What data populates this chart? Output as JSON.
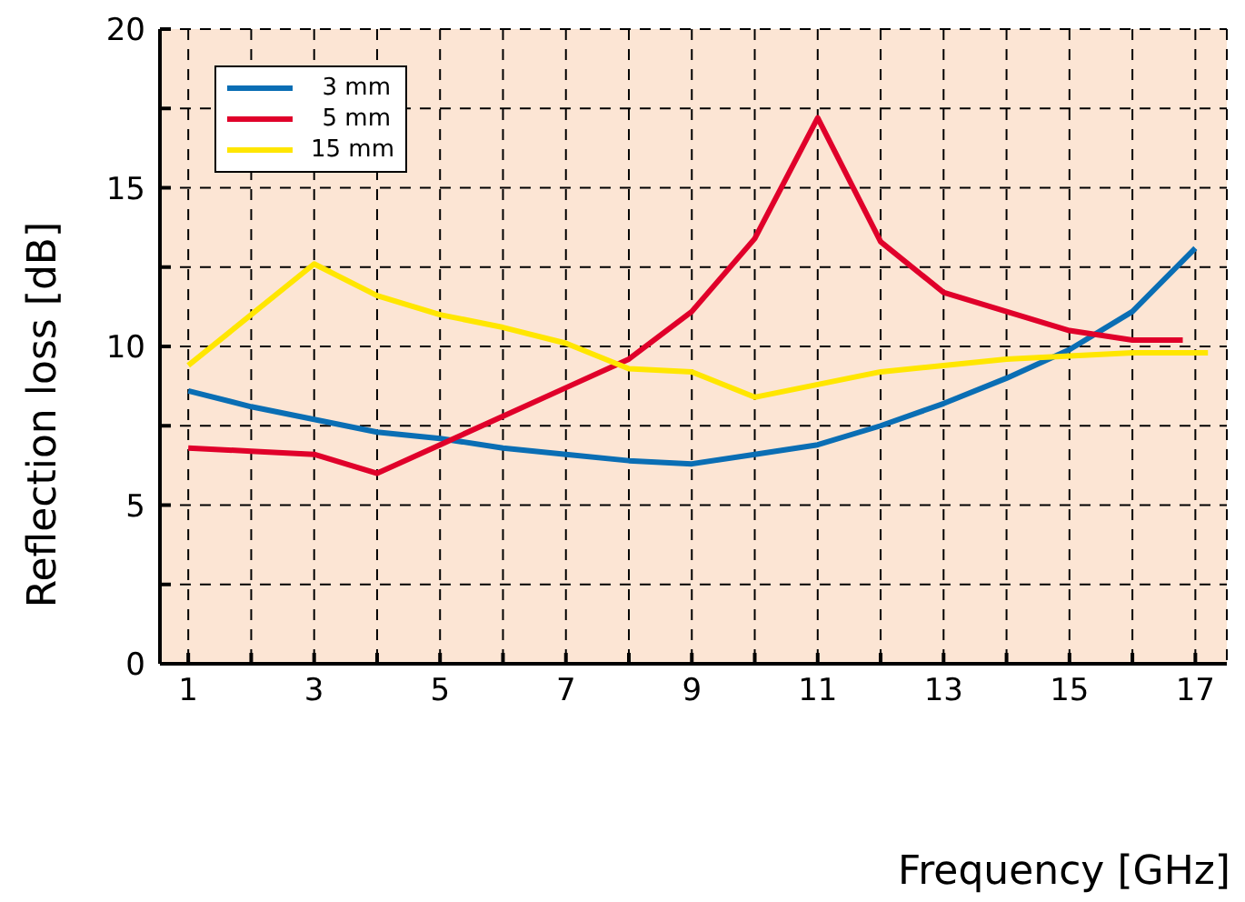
{
  "chart_data": {
    "type": "line",
    "xlabel": "Frequency [GHz]",
    "ylabel": "Reflection loss [dB]",
    "xlim": [
      0.55,
      17.5
    ],
    "xticks": [
      1,
      {
        "value": 2,
        "label": null
      },
      3,
      {
        "value": 4,
        "label": null
      },
      5,
      {
        "value": 6,
        "label": null
      },
      7,
      {
        "value": 8,
        "label": null
      },
      9,
      {
        "value": 10,
        "label": null
      },
      11,
      {
        "value": 12,
        "label": null
      },
      13,
      {
        "value": 14,
        "label": null
      },
      15,
      {
        "value": 16,
        "label": null
      },
      17
    ],
    "ylim": [
      0,
      20
    ],
    "yticks": [
      0,
      {
        "value": 2.5,
        "label": null
      },
      5,
      {
        "value": 7.5,
        "label": null
      },
      10,
      {
        "value": 12.5,
        "label": null
      },
      15,
      {
        "value": 17.5,
        "label": null
      },
      20
    ],
    "grid": true,
    "legend": "top left",
    "line_style": "solid",
    "marker": "none",
    "series": [
      {
        "name": "3 mm",
        "color": "#0a6eb4",
        "x": [
          1,
          2,
          3,
          4,
          5,
          6,
          7,
          8,
          9,
          10,
          11,
          12,
          13,
          14,
          15,
          16,
          17
        ],
        "values": [
          8.6,
          8.1,
          7.7,
          7.3,
          7.1,
          6.8,
          6.6,
          6.4,
          6.3,
          6.6,
          6.9,
          7.5,
          8.2,
          9.0,
          9.9,
          11.1,
          13.1
        ]
      },
      {
        "name": "5 mm",
        "color": "#e0002a",
        "x": [
          1,
          2,
          3,
          4,
          5,
          6,
          7,
          8,
          9,
          10,
          11,
          12,
          13,
          14,
          15,
          16,
          16.8
        ],
        "values": [
          6.8,
          6.7,
          6.6,
          6.0,
          6.9,
          7.8,
          8.7,
          9.6,
          11.1,
          13.4,
          17.2,
          13.3,
          11.7,
          11.1,
          10.5,
          10.2,
          10.2
        ]
      },
      {
        "name": "15 mm",
        "color": "#ffe600",
        "x": [
          1,
          3,
          4,
          5,
          6,
          7,
          8,
          9,
          10,
          11,
          12,
          13,
          14,
          15,
          16,
          17.2
        ],
        "values": [
          9.4,
          12.6,
          11.6,
          11.0,
          10.6,
          10.1,
          9.3,
          9.2,
          8.4,
          8.8,
          9.2,
          9.4,
          9.6,
          9.7,
          9.8,
          9.8
        ]
      }
    ]
  }
}
